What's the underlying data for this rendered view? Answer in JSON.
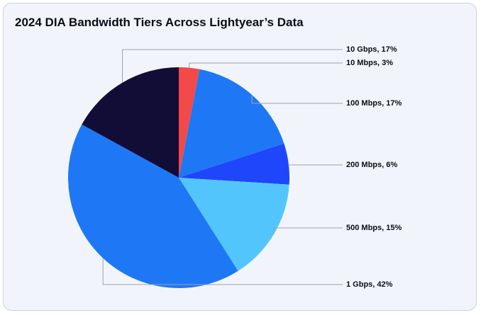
{
  "chart_data": {
    "type": "pie",
    "title": "2024 DIA Bandwidth Tiers Across Lightyear’s Data",
    "start": "top",
    "direction": "clockwise",
    "slices": [
      {
        "label": "10 Mbps, 3%",
        "value": 3,
        "color": "#f44949"
      },
      {
        "label": "100 Mbps, 17%",
        "value": 17,
        "color": "#1e78f5"
      },
      {
        "label": "200 Mbps, 6%",
        "value": 6,
        "color": "#1f46fa"
      },
      {
        "label": "500 Mbps, 15%",
        "value": 15,
        "color": "#52c6fc"
      },
      {
        "label": "1 Gbps, 42%",
        "value": 42,
        "color": "#1e78f5"
      },
      {
        "label": "10 Gbps, 17%",
        "value": 17,
        "color": "#120d36"
      }
    ],
    "background": "#f1f5fb"
  }
}
